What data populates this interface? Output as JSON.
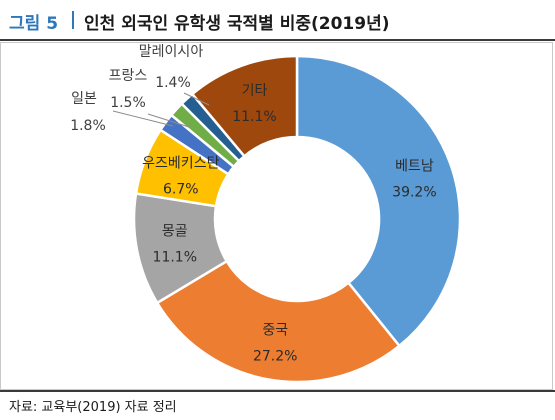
{
  "header": {
    "figure_label": "그림 5",
    "title": "인천 외국인 유학생 국적별 비중(2019년)"
  },
  "source": "자료: 교육부(2019) 자료 정리",
  "chart_data": {
    "type": "pie",
    "donut": true,
    "title": "인천 외국인 유학생 국적별 비중(2019년)",
    "unit": "%",
    "slices": [
      {
        "label": "베트남",
        "value": 39.2,
        "display": "39.2%",
        "color": "#5b9bd5"
      },
      {
        "label": "중국",
        "value": 27.2,
        "display": "27.2%",
        "color": "#ed7d31"
      },
      {
        "label": "몽골",
        "value": 11.1,
        "display": "11.1%",
        "color": "#a5a5a5"
      },
      {
        "label": "우즈베키스탄",
        "value": 6.7,
        "display": "6.7%",
        "color": "#ffc000"
      },
      {
        "label": "일본",
        "value": 1.8,
        "display": "1.8%",
        "color": "#4472c4"
      },
      {
        "label": "프랑스",
        "value": 1.5,
        "display": "1.5%",
        "color": "#70ad47"
      },
      {
        "label": "말레이시아",
        "value": 1.4,
        "display": "1.4%",
        "color": "#255e91"
      },
      {
        "label": "기타",
        "value": 11.1,
        "display": "11.1%",
        "color": "#9e480e"
      }
    ]
  }
}
